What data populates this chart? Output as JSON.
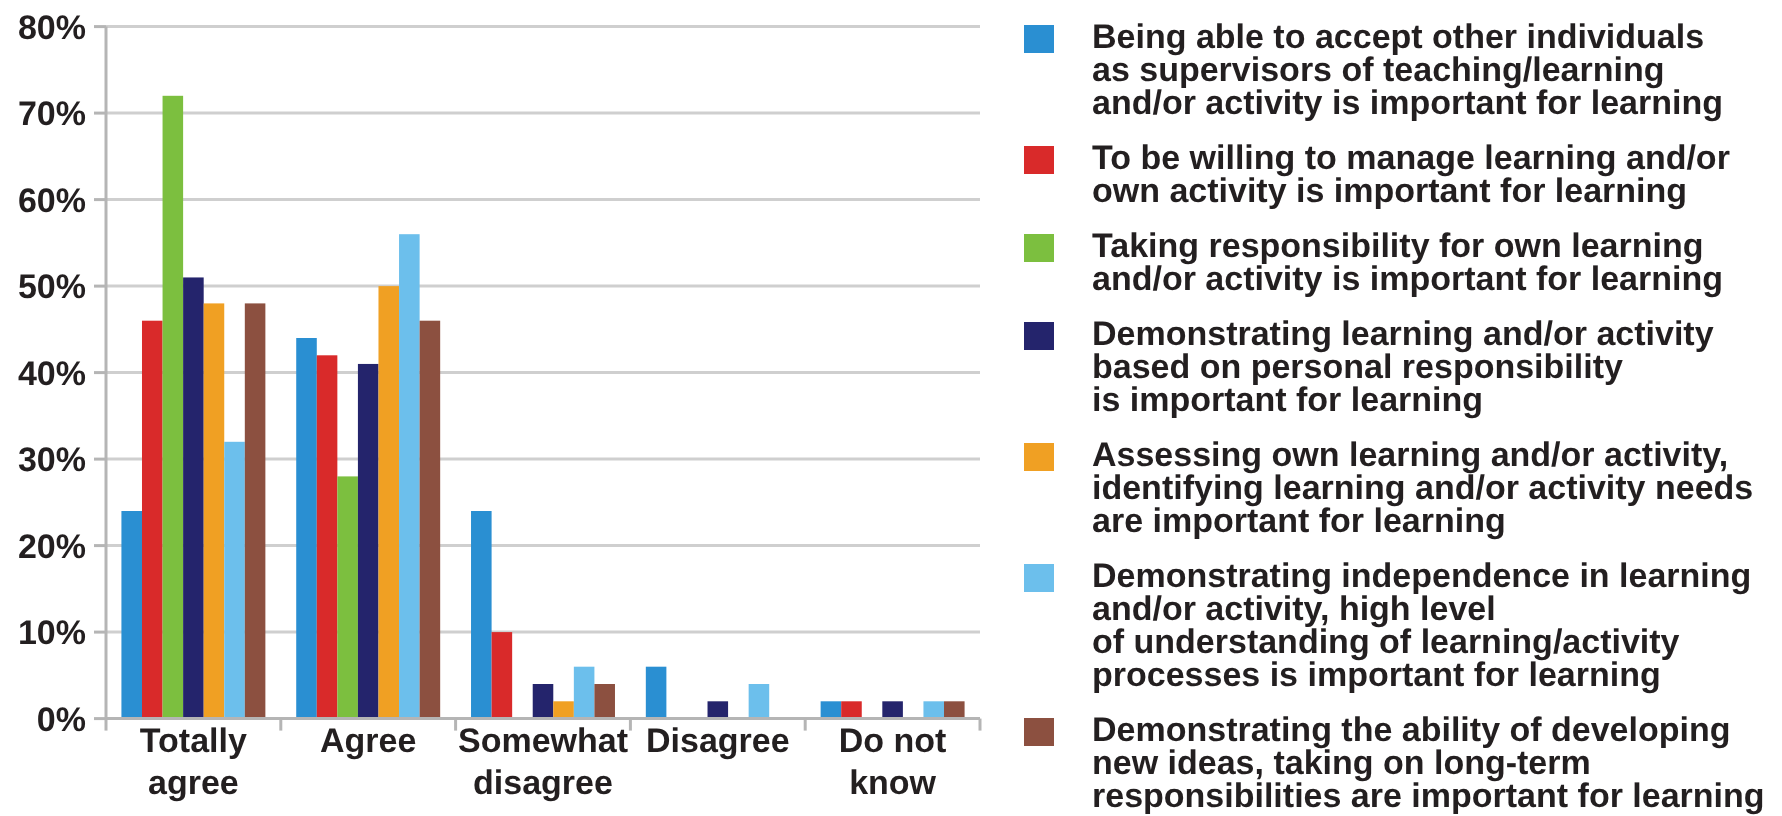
{
  "chart_data": {
    "type": "bar",
    "categories": [
      "Totally\nagree",
      "Agree",
      "Somewhat\ndisagree",
      "Disagree",
      "Do not\nknow"
    ],
    "series": [
      {
        "name": "Being able to accept other individuals\nas supervisors of teaching/learning\nand/or activity is important for learning",
        "color": "#2a8fd2",
        "values": [
          24,
          44,
          24,
          6,
          2
        ]
      },
      {
        "name": "To be willing to manage learning and/or\nown activity is important for learning",
        "color": "#d92a2a",
        "values": [
          46,
          42,
          10,
          null,
          2
        ]
      },
      {
        "name": "Taking responsibility for own learning\nand/or activity is important for learning",
        "color": "#7cbf3f",
        "values": [
          72,
          28,
          null,
          null,
          null
        ]
      },
      {
        "name": "Demonstrating learning and/or activity\nbased on personal responsibility\nis important for learning",
        "color": "#24246c",
        "values": [
          51,
          41,
          4,
          2,
          2
        ]
      },
      {
        "name": "Assessing own learning and/or activity,\nidentifying learning and/or activity needs\nare important for learning",
        "color": "#f0a023",
        "values": [
          48,
          50,
          2,
          null,
          null
        ]
      },
      {
        "name": "Demonstrating independence in learning\nand/or activity, high level\nof understanding of learning/activity\nprocesses is important for learning",
        "color": "#6cbfec",
        "values": [
          32,
          56,
          6,
          4,
          2
        ]
      },
      {
        "name": "Demonstrating the ability of developing\nnew ideas, taking on long-term\nresponsibilities are important for learning",
        "color": "#8c5040",
        "values": [
          48,
          46,
          4,
          null,
          2
        ]
      }
    ],
    "ylim": [
      0,
      80
    ],
    "yticks": [
      {
        "value": 0,
        "label": "0%"
      },
      {
        "value": 10,
        "label": "10%"
      },
      {
        "value": 20,
        "label": "20%"
      },
      {
        "value": 30,
        "label": "30%"
      },
      {
        "value": 40,
        "label": "40%"
      },
      {
        "value": 50,
        "label": "50%"
      },
      {
        "value": 60,
        "label": "60%"
      },
      {
        "value": 70,
        "label": "70%"
      },
      {
        "value": 80,
        "label": "80%"
      }
    ],
    "grid": "y",
    "legend": "right"
  }
}
